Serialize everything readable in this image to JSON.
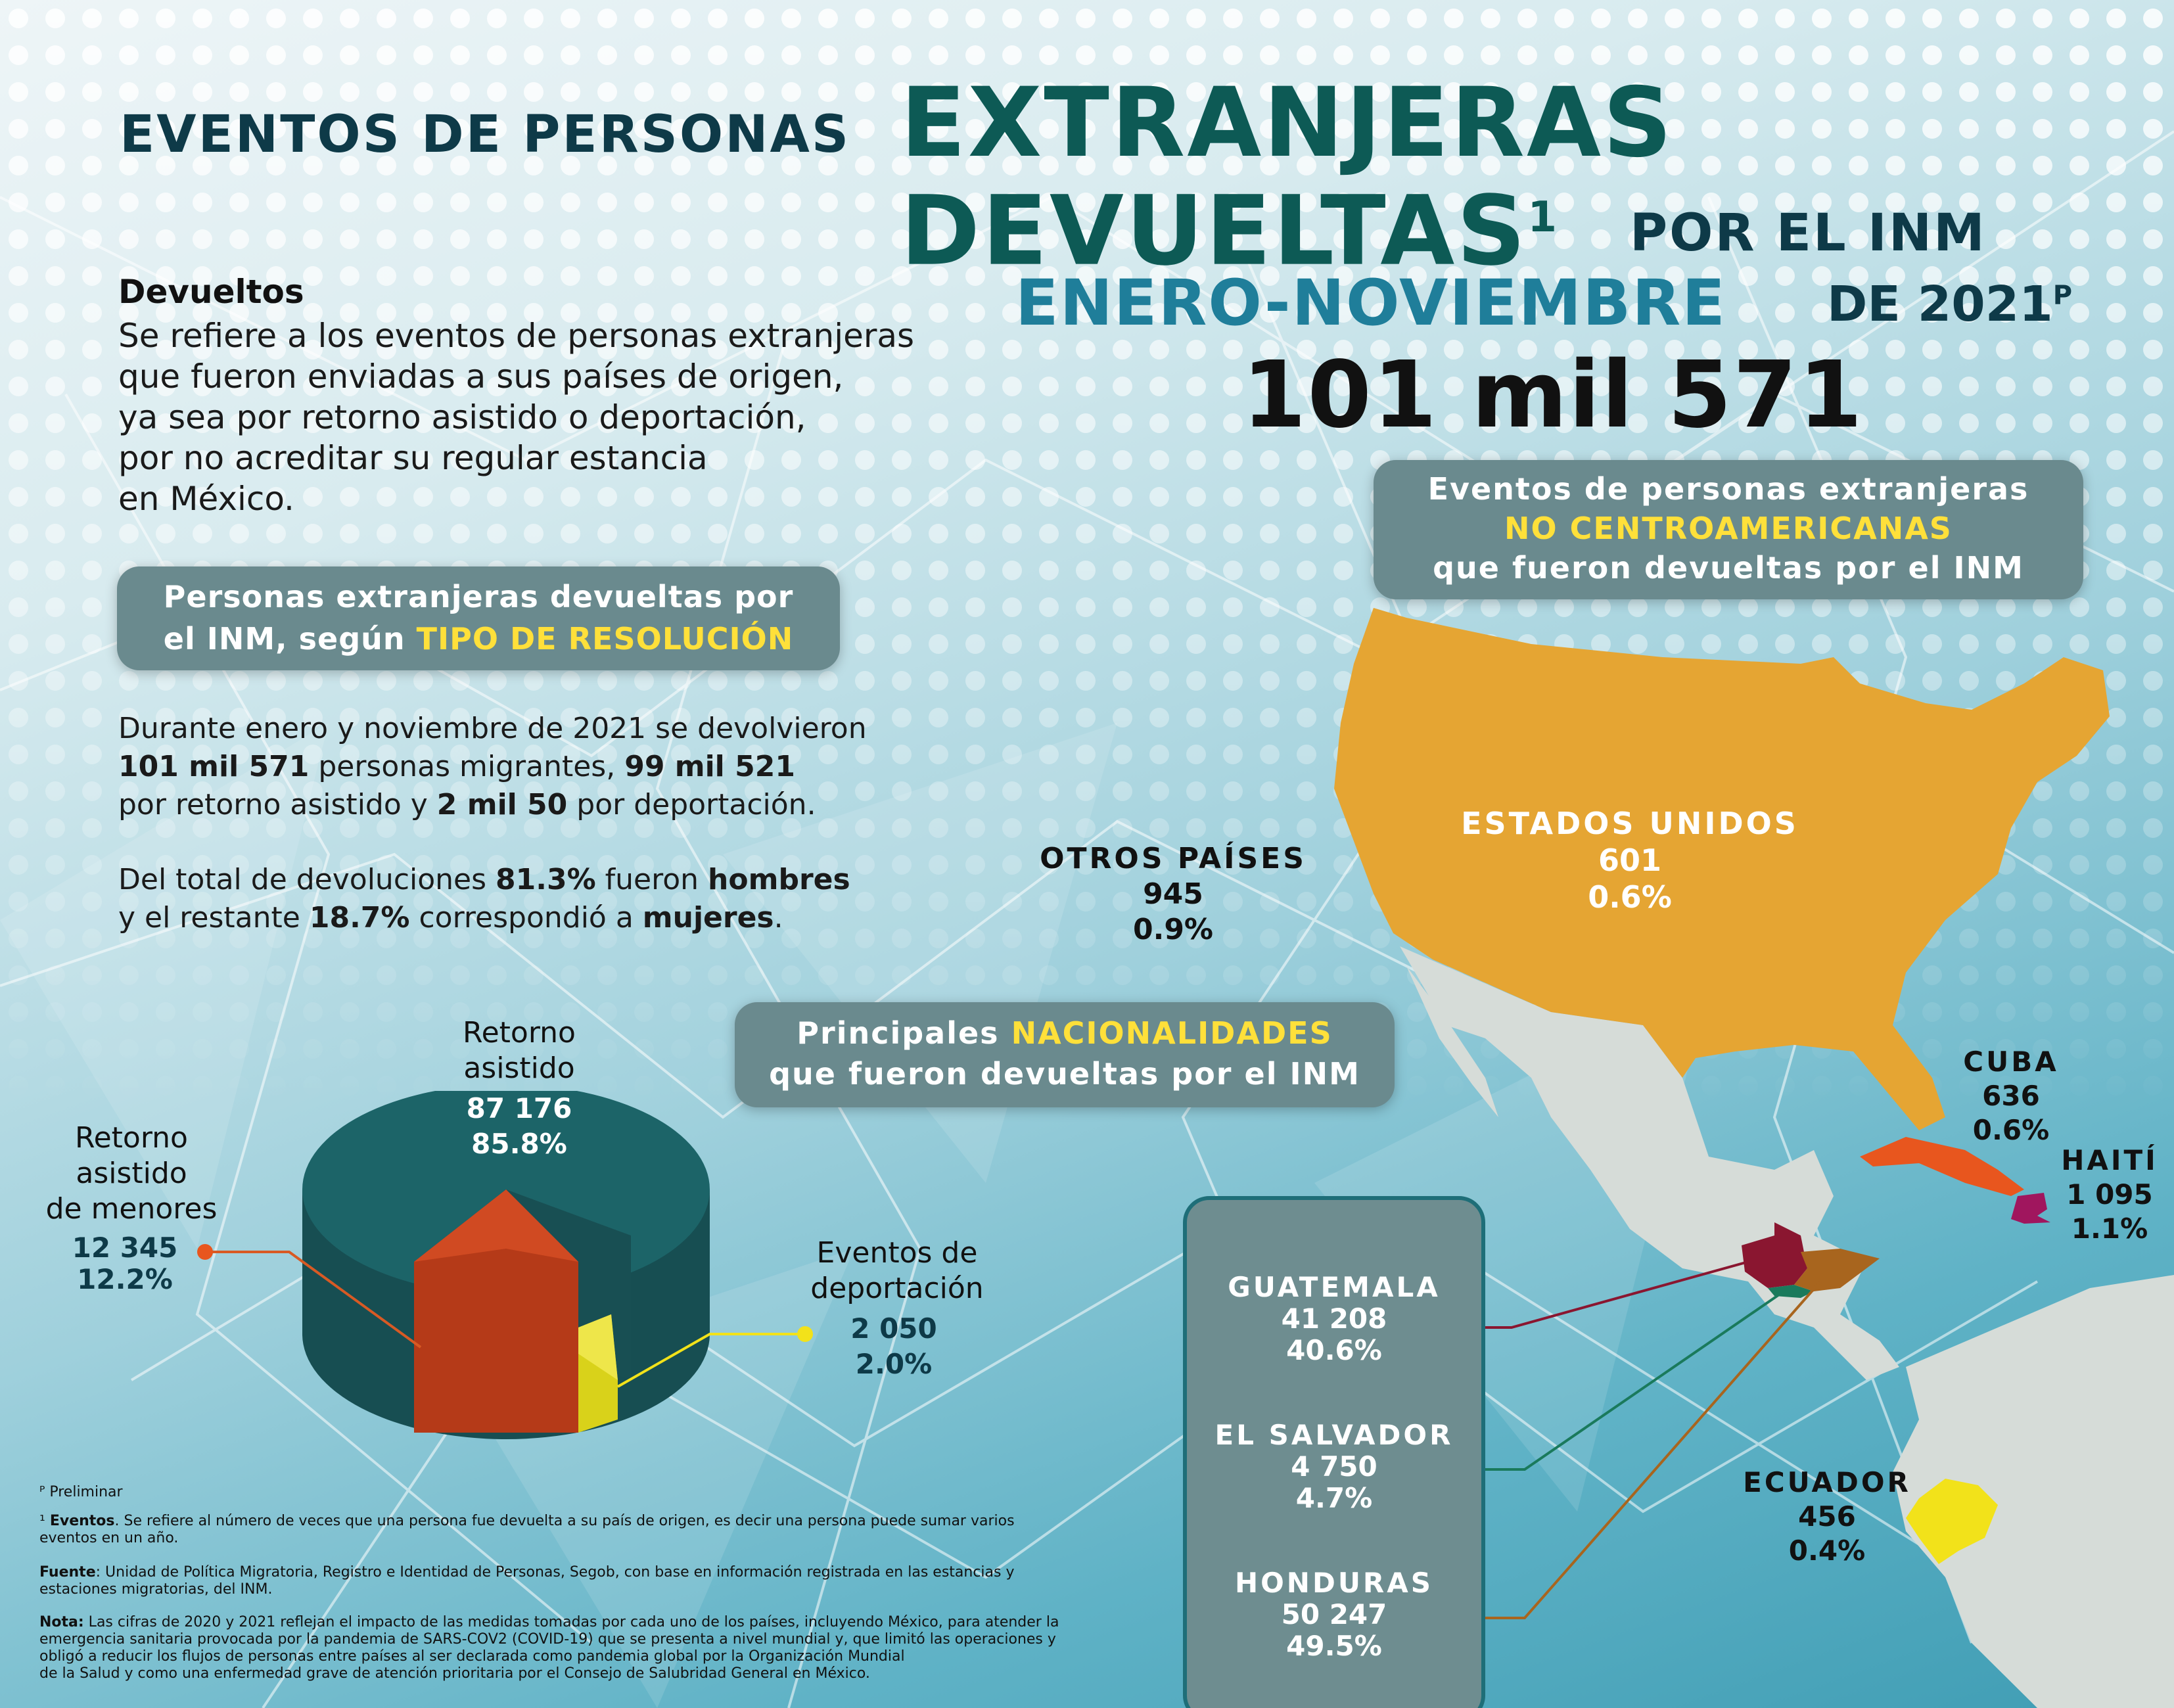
{
  "title": {
    "line1_prefix": "EVENTOS DE PERSONAS",
    "line1_big": "EXTRANJERAS",
    "line2_big": "DEVUELTAS",
    "line2_sup": "1",
    "line2_suffix": "POR EL INM",
    "line3_highlight": "ENERO-NOVIEMBRE",
    "line3_suffix": "DE 2021",
    "line3_sup": "P",
    "total": "101 mil 571"
  },
  "definition": {
    "heading": "Devueltos",
    "lines": [
      "Se refiere a los eventos de personas extranjeras",
      "que fueron enviadas a sus países de origen,",
      "ya sea por retorno asistido o deportación,",
      "por no acreditar su regular estancia",
      "en México."
    ]
  },
  "resolution_box": {
    "line1": "Personas extranjeras devueltas por",
    "line2_prefix": "el INM, según",
    "line2_highlight": "TIPO DE RESOLUCIÓN"
  },
  "summary": {
    "p1_l1": "Durante enero y noviembre de 2021 se devolvieron",
    "p1_l2_b1": "101 mil 571",
    "p1_l2_t1": " personas migrantes, ",
    "p1_l2_b2": "99 mil 521",
    "p1_l3_t1": "por retorno asistido y ",
    "p1_l3_b1": "2 mil 50",
    "p1_l3_t2": " por deportación.",
    "p2_l1_t1": "Del total de devoluciones ",
    "p2_l1_b1": "81.3%",
    "p2_l1_t2": " fueron ",
    "p2_l1_b2": "hombres",
    "p2_l2_t1": "y el restante ",
    "p2_l2_b1": "18.7%",
    "p2_l2_t2": " correspondió a ",
    "p2_l2_b2": "mujeres",
    "p2_l2_t3": "."
  },
  "pie": {
    "retorno_asistido": {
      "label_1": "Retorno",
      "label_2": "asistido",
      "value": "87 176",
      "pct": "85.8%",
      "share": 85.8,
      "color": "#1c5e62"
    },
    "menores": {
      "label_1": "Retorno",
      "label_2": "asistido",
      "label_3": "de menores",
      "value": "12 345",
      "pct": "12.2%",
      "share": 12.2,
      "color": "#c13f1c"
    },
    "deportacion": {
      "label_1": "Eventos de",
      "label_2": "deportación",
      "value": "2 050",
      "pct": "2.0%",
      "share": 2.0,
      "color": "#d9d21a"
    }
  },
  "non_central_box": {
    "line1": "Eventos de personas extranjeras",
    "line2_highlight": "NO CENTROAMERICANAS",
    "line3": "que fueron devueltas por el INM"
  },
  "nationalities_box": {
    "line1_prefix": "Principales",
    "line1_highlight": "NACIONALIDADES",
    "line2": "que fueron devueltas por el INM"
  },
  "countries": {
    "usa": {
      "name": "ESTADOS UNIDOS",
      "value": "601",
      "pct": "0.6%"
    },
    "otros": {
      "name": "OTROS PAÍSES",
      "value": "945",
      "pct": "0.9%"
    },
    "cuba": {
      "name": "CUBA",
      "value": "636",
      "pct": "0.6%"
    },
    "haiti": {
      "name": "HAITÍ",
      "value": "1 095",
      "pct": "1.1%"
    },
    "ecuador": {
      "name": "ECUADOR",
      "value": "456",
      "pct": "0.4%"
    },
    "guatemala": {
      "name": "GUATEMALA",
      "value": "41 208",
      "pct": "40.6%"
    },
    "el_salvador": {
      "name": "EL SALVADOR",
      "value": "4 750",
      "pct": "4.7%"
    },
    "honduras": {
      "name": "HONDURAS",
      "value": "50 247",
      "pct": "49.5%"
    }
  },
  "colors": {
    "usa": "#e5a533",
    "cuba": "#e8561e",
    "haiti": "#a0165e",
    "guatemala": "#8a1630",
    "el_salvador": "#1a7a5c",
    "honduras": "#a8651e",
    "ecuador": "#f2e21a",
    "land": "#d6dcd8"
  },
  "footnotes": {
    "p": "ᴾ Preliminar",
    "n1_sup": "¹",
    "n1_bold": "Eventos",
    "n1_l1": ". Se refiere al número de veces que una persona fue devuelta a su país de origen,  es decir una persona puede sumar varios",
    "n1_l2": "eventos en un año.",
    "fuente_bold": "Fuente",
    "fuente_l1": ": Unidad de Política Migratoria, Registro e Identidad de Personas, Segob, con base en información registrada en las estancias y",
    "fuente_l2": "estaciones migratorias, del INM.",
    "nota_bold": "Nota:",
    "nota_l1": " Las cifras de 2020 y 2021 reflejan el impacto de las medidas tomadas por cada uno de los países, incluyendo México, para atender la",
    "nota_l2": "emergencia sanitaria provocada por la pandemia de SARS-COV2 (COVID-19) que se presenta a nivel mundial y, que limitó las operaciones y",
    "nota_l3": "obligó a reducir los flujos de personas entre países al ser declarada como pandemia global por la Organización Mundial",
    "nota_l4": "de la Salud y como una enfermedad grave de atención prioritaria por el Consejo de Salubridad General en México."
  }
}
